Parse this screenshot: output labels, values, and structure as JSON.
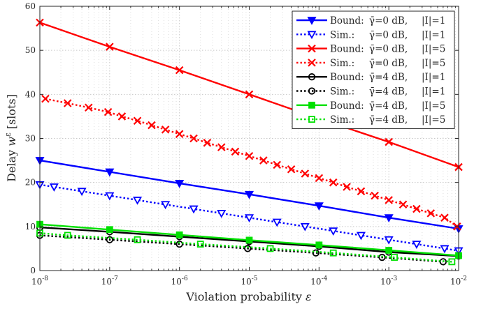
{
  "chart_data": {
    "type": "line",
    "x_scale": "log",
    "y_scale": "linear",
    "xlim": [
      1e-08,
      0.01
    ],
    "ylim": [
      0,
      60
    ],
    "x_ticks": [
      1e-08,
      1e-07,
      1e-06,
      1e-05,
      0.0001,
      0.001,
      0.01
    ],
    "x_tick_labels": [
      {
        "base": "10",
        "exp": "-8"
      },
      {
        "base": "10",
        "exp": "-7"
      },
      {
        "base": "10",
        "exp": "-6"
      },
      {
        "base": "10",
        "exp": "-5"
      },
      {
        "base": "10",
        "exp": "-4"
      },
      {
        "base": "10",
        "exp": "-3"
      },
      {
        "base": "10",
        "exp": "-2"
      }
    ],
    "y_ticks": [
      0,
      10,
      20,
      30,
      40,
      50,
      60
    ],
    "y_tick_labels": [
      "0",
      "10",
      "20",
      "30",
      "40",
      "50",
      "60"
    ],
    "xlabel": {
      "text": "Violation probability ",
      "symbol": "ε"
    },
    "ylabel": {
      "text": "Delay ",
      "symbol": "w",
      "sup": "ε",
      "unit": " [slots]"
    },
    "grid": true,
    "legend_position": "top-right",
    "series": [
      {
        "name": "Bound:  γ̄=0 dB, |I|=1",
        "legend": {
          "kind": "Bound:",
          "gamma": "γ̄=0 dB,",
          "set": "|I|=1"
        },
        "color": "#0000ff",
        "linestyle": "solid",
        "marker": "triangle-down-filled",
        "x": [
          1e-08,
          1e-07,
          1e-06,
          1e-05,
          0.0001,
          0.001,
          0.01
        ],
        "y": [
          25,
          22.4,
          19.8,
          17.3,
          14.7,
          12,
          9.5
        ]
      },
      {
        "name": "Sim.:    γ̄=0 dB, |I|=1",
        "legend": {
          "kind": "Sim.:",
          "gamma": "γ̄=0 dB,",
          "set": "|I|=1"
        },
        "color": "#0000ff",
        "linestyle": "dotted",
        "marker": "triangle-down-open",
        "x": [
          1e-08,
          1.6e-08,
          4e-08,
          1e-07,
          2.5e-07,
          6.3e-07,
          1.6e-06,
          4e-06,
          1e-05,
          2.5e-05,
          6.3e-05,
          0.00016,
          0.0004,
          0.001,
          0.0025,
          0.0063,
          0.01
        ],
        "y": [
          19.5,
          19,
          18,
          17,
          16,
          15,
          14,
          13,
          12,
          11,
          10,
          9,
          8,
          7,
          6,
          5,
          4.5
        ]
      },
      {
        "name": "Bound:  γ̄=0 dB, |I|=5",
        "legend": {
          "kind": "Bound:",
          "gamma": "γ̄=0 dB,",
          "set": "|I|=5"
        },
        "color": "#ff0000",
        "linestyle": "solid",
        "marker": "x",
        "x": [
          1e-08,
          1e-07,
          1e-06,
          1e-05,
          0.0001,
          0.001,
          0.01
        ],
        "y": [
          56.3,
          50.8,
          45.5,
          40,
          34.5,
          29.2,
          23.5
        ]
      },
      {
        "name": "Sim.:    γ̄=0 dB, |I|=5",
        "legend": {
          "kind": "Sim.:",
          "gamma": "γ̄=0 dB,",
          "set": "|I|=5"
        },
        "color": "#ff0000",
        "linestyle": "dotted",
        "marker": "x",
        "x": [
          1.2e-08,
          2.5e-08,
          5e-08,
          9.5e-08,
          1.5e-07,
          2.5e-07,
          4e-07,
          6.3e-07,
          1e-06,
          1.6e-06,
          2.5e-06,
          4e-06,
          6.3e-06,
          1e-05,
          1.6e-05,
          2.5e-05,
          4e-05,
          6.3e-05,
          0.0001,
          0.00016,
          0.00025,
          0.0004,
          0.00063,
          0.001,
          0.0016,
          0.0025,
          0.004,
          0.0063,
          0.0095
        ],
        "y": [
          39,
          38,
          37,
          36,
          35,
          34,
          33,
          32,
          31,
          30,
          29,
          28,
          27,
          26,
          25,
          24,
          23,
          22,
          21,
          20,
          19,
          18,
          17,
          16,
          15,
          14,
          13,
          12,
          10
        ]
      },
      {
        "name": "Bound:  γ̄=4 dB, |I|=1",
        "legend": {
          "kind": "Bound:",
          "gamma": "γ̄=4 dB,",
          "set": "|I|=1"
        },
        "color": "#000000",
        "linestyle": "solid",
        "marker": "circle-open",
        "x": [
          1e-08,
          1e-07,
          1e-06,
          1e-05,
          0.0001,
          0.001,
          0.01
        ],
        "y": [
          9.8,
          8.8,
          7.7,
          6.6,
          5.5,
          4.2,
          3.3
        ]
      },
      {
        "name": "Sim.:    γ̄=4 dB, |I|=1",
        "legend": {
          "kind": "Sim.:",
          "gamma": "γ̄=4 dB,",
          "set": "|I|=1"
        },
        "color": "#000000",
        "linestyle": "dotted",
        "marker": "circle-open",
        "x": [
          1e-08,
          1e-07,
          1e-06,
          9.5e-06,
          9e-05,
          0.0008,
          0.006
        ],
        "y": [
          8,
          7,
          6,
          5,
          4,
          3,
          2
        ]
      },
      {
        "name": "Bound:  γ̄=4 dB, |I|=5",
        "legend": {
          "kind": "Bound:",
          "gamma": "γ̄=4 dB,",
          "set": "|I|=5"
        },
        "color": "#00e000",
        "linestyle": "solid",
        "marker": "square-filled",
        "x": [
          1e-08,
          1e-07,
          1e-06,
          1e-05,
          0.0001,
          0.001,
          0.01
        ],
        "y": [
          10.5,
          9.3,
          8.1,
          6.9,
          5.8,
          4.6,
          3.4
        ]
      },
      {
        "name": "Sim.:    γ̄=4 dB, |I|=5",
        "legend": {
          "kind": "Sim.:",
          "gamma": "γ̄=4 dB,",
          "set": "|I|=5"
        },
        "color": "#00e000",
        "linestyle": "dotted",
        "marker": "square-open",
        "x": [
          1e-08,
          2.5e-08,
          2.5e-07,
          2e-06,
          2e-05,
          0.00016,
          0.0012,
          0.008
        ],
        "y": [
          8.5,
          8,
          7,
          6,
          5,
          4,
          3,
          2
        ]
      }
    ]
  }
}
